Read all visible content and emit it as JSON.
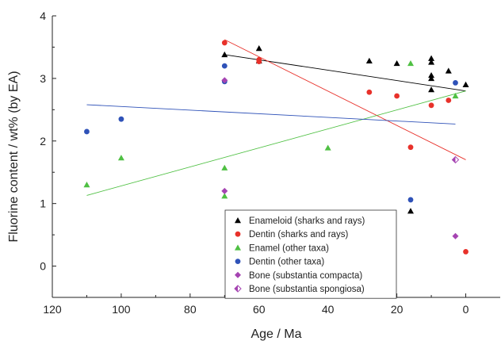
{
  "chart_data": {
    "type": "scatter",
    "xlabel": "Age / Ma",
    "ylabel": "Fluorine content / wt% (by EA)",
    "xlim": [
      120,
      -10
    ],
    "ylim": [
      -0.5,
      4
    ],
    "x_reversed": true,
    "x_ticks": [
      120,
      100,
      80,
      60,
      40,
      20,
      0
    ],
    "x_tick_labels": [
      "120",
      "100",
      "80",
      "60",
      "40",
      "20",
      "0"
    ],
    "y_ticks": [
      0,
      1,
      2,
      3,
      4
    ],
    "y_tick_labels": [
      "0",
      "1",
      "2",
      "3",
      "4"
    ],
    "legend_position": "bottom-center",
    "grid": false,
    "series": [
      {
        "name": "Enameloid (sharks and rays)",
        "marker": "triangle",
        "color": "#000000",
        "points": [
          [
            70,
            3.38
          ],
          [
            60,
            3.48
          ],
          [
            60,
            3.28
          ],
          [
            28,
            3.28
          ],
          [
            20,
            3.24
          ],
          [
            10,
            3.32
          ],
          [
            10,
            3.26
          ],
          [
            10,
            3.05
          ],
          [
            10,
            3.0
          ],
          [
            10,
            2.82
          ],
          [
            5,
            3.12
          ],
          [
            0,
            2.9
          ],
          [
            16,
            0.88
          ]
        ]
      },
      {
        "name": "Dentin (sharks and rays)",
        "marker": "circle",
        "color": "#e8312a",
        "points": [
          [
            70,
            3.57
          ],
          [
            60,
            3.3
          ],
          [
            60,
            3.27
          ],
          [
            28,
            2.78
          ],
          [
            20,
            2.72
          ],
          [
            10,
            2.57
          ],
          [
            5,
            2.65
          ],
          [
            16,
            1.9
          ],
          [
            0,
            0.23
          ]
        ]
      },
      {
        "name": "Enamel (other taxa)",
        "marker": "triangle",
        "color": "#4fc043",
        "points": [
          [
            110,
            1.3
          ],
          [
            100,
            1.73
          ],
          [
            70,
            1.57
          ],
          [
            70,
            1.12
          ],
          [
            40,
            1.89
          ],
          [
            16,
            3.24
          ],
          [
            3,
            2.72
          ]
        ]
      },
      {
        "name": "Dentin (other taxa)",
        "marker": "circle",
        "color": "#2f52b8",
        "points": [
          [
            110,
            2.15
          ],
          [
            100,
            2.35
          ],
          [
            70,
            3.2
          ],
          [
            70,
            2.95
          ],
          [
            16,
            1.06
          ],
          [
            3,
            2.93
          ]
        ]
      },
      {
        "name": "Bone (substantia compacta)",
        "marker": "diamond",
        "color": "#a544b2",
        "points": [
          [
            70,
            2.97
          ],
          [
            70,
            1.2
          ],
          [
            3,
            0.48
          ]
        ]
      },
      {
        "name": "Bone (substantia spongiosa)",
        "marker": "diamond-half",
        "color": "#a544b2",
        "points": [
          [
            3,
            1.7
          ]
        ]
      }
    ],
    "trendlines": [
      {
        "color": "#000000",
        "from": [
          70,
          3.38
        ],
        "to": [
          0,
          2.8
        ]
      },
      {
        "color": "#e8312a",
        "from": [
          70,
          3.62
        ],
        "to": [
          0,
          1.7
        ]
      },
      {
        "color": "#4fc043",
        "from": [
          110,
          1.13
        ],
        "to": [
          0,
          2.8
        ]
      },
      {
        "color": "#2f52b8",
        "from": [
          110,
          2.58
        ],
        "to": [
          3,
          2.27
        ]
      }
    ]
  }
}
